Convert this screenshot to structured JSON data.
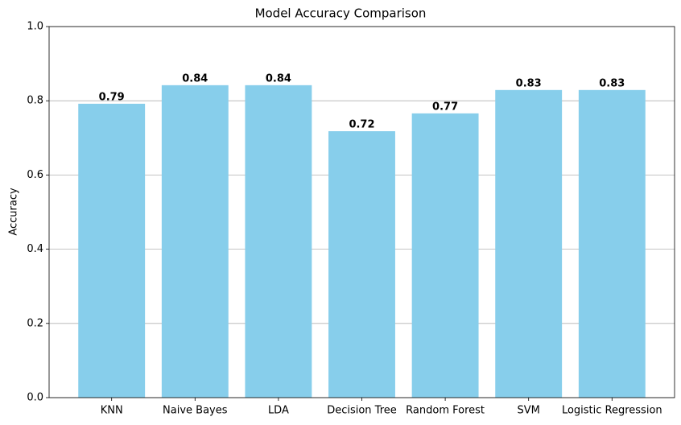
{
  "chart_data": {
    "type": "bar",
    "title": "Model Accuracy Comparison",
    "y_label": "Accuracy",
    "categories": [
      "KNN",
      "Naive Bayes",
      "LDA",
      "Decision Tree",
      "Random Forest",
      "SVM",
      "Logistic Regression"
    ],
    "values": [
      0.792,
      0.842,
      0.842,
      0.718,
      0.766,
      0.829,
      0.829
    ],
    "value_labels": [
      "0.79",
      "0.84",
      "0.84",
      "0.72",
      "0.77",
      "0.83",
      "0.83"
    ],
    "color": "#87ceeb",
    "ylim": [
      0,
      1
    ],
    "yticks": [
      {
        "value": 0,
        "label": "0.0"
      },
      0.2,
      0.4,
      0.6,
      0.8,
      {
        "value": 1,
        "label": "1.0"
      }
    ],
    "grid": true
  }
}
